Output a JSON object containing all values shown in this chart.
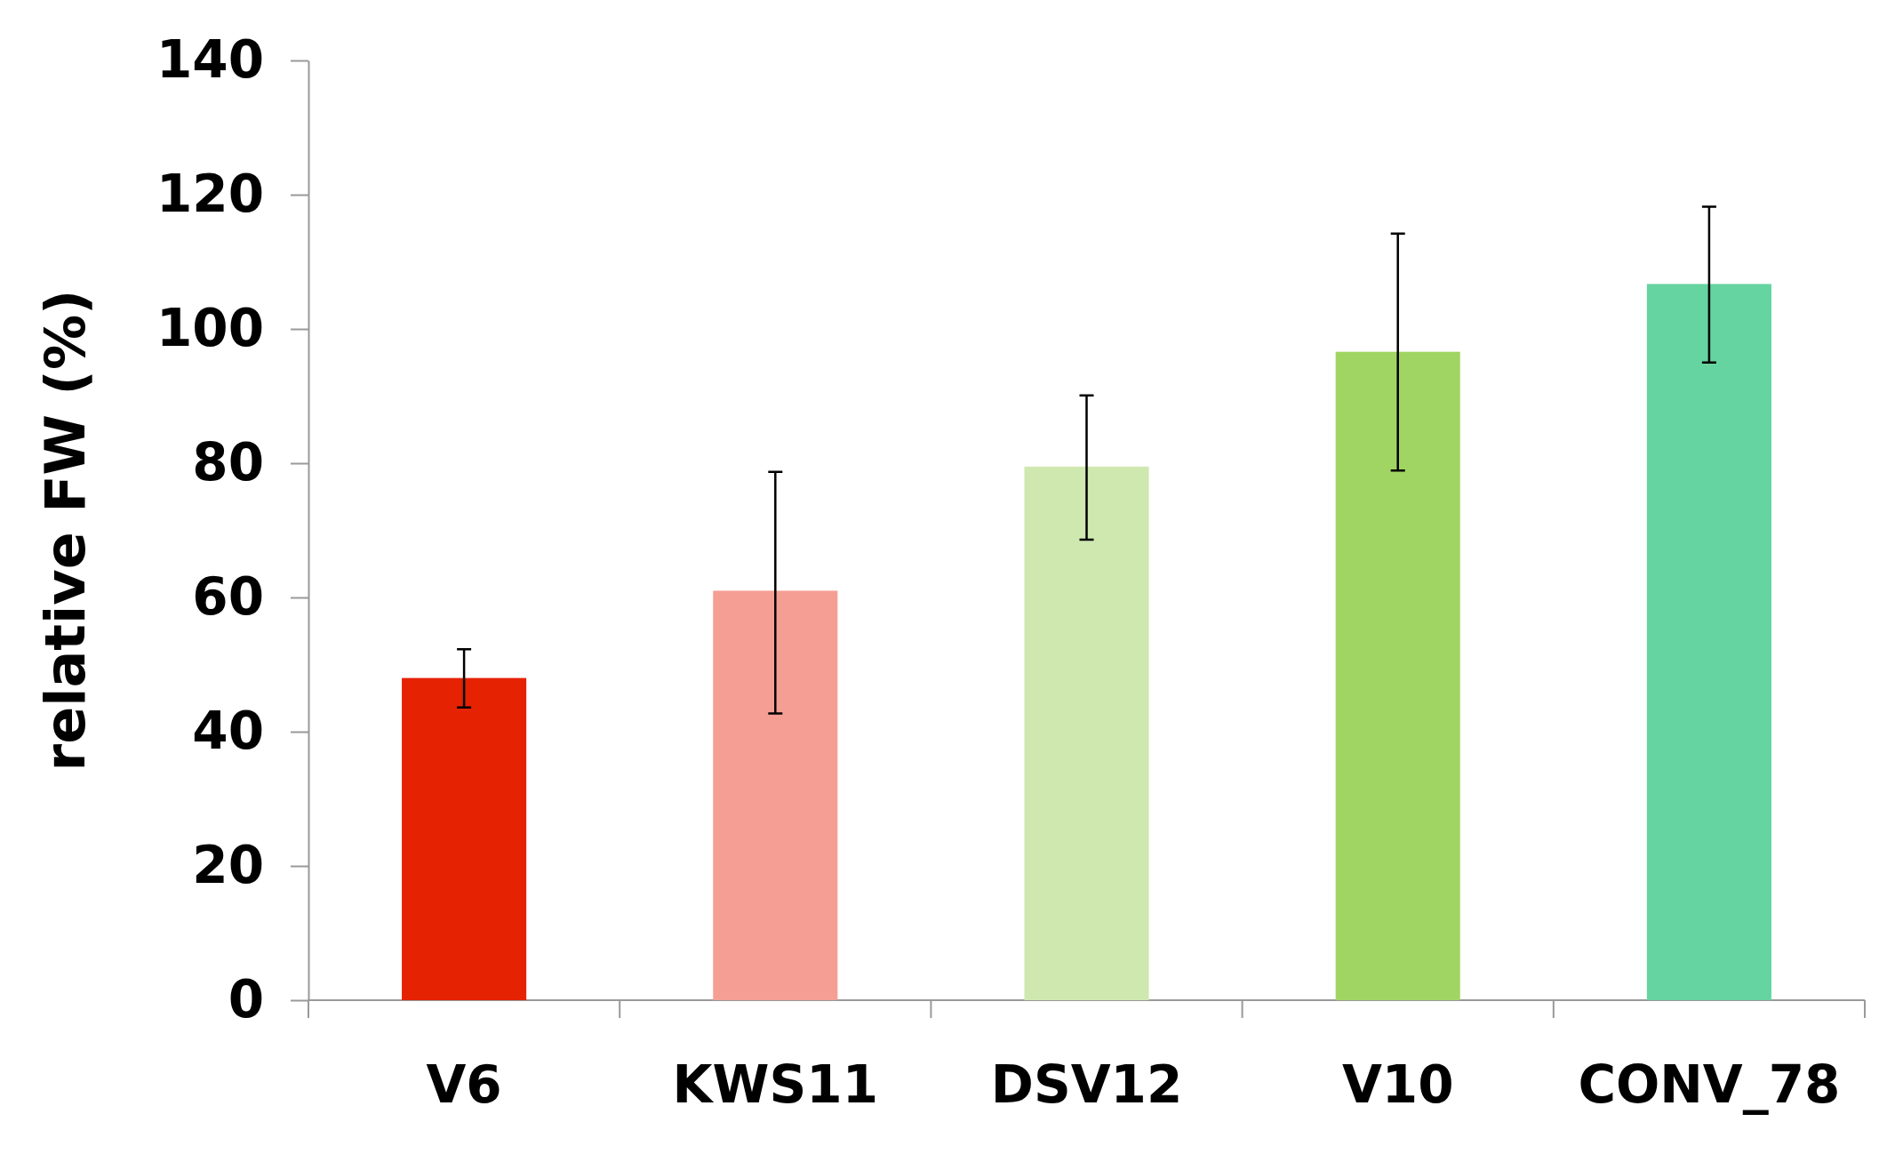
{
  "chart_data": {
    "type": "bar",
    "ylabel": "relative FW (%)",
    "categories": [
      "V6",
      "KWS11",
      "DSV12",
      "V10",
      "CONV_78"
    ],
    "values": [
      48,
      61,
      79.5,
      96.6,
      106.7
    ],
    "colors": [
      "#e52202",
      "#f59e94",
      "#cfe8b0",
      "#a1d563",
      "#66d4a0"
    ],
    "errors": [
      [
        43.6,
        52.3
      ],
      [
        42.7,
        78.7
      ],
      [
        68.6,
        90.1
      ],
      [
        78.9,
        114.2
      ],
      [
        95,
        118.2
      ]
    ],
    "ylim": [
      0,
      140
    ],
    "yticks": [
      0,
      20,
      40,
      60,
      80,
      100,
      120,
      140
    ],
    "grid": false
  }
}
